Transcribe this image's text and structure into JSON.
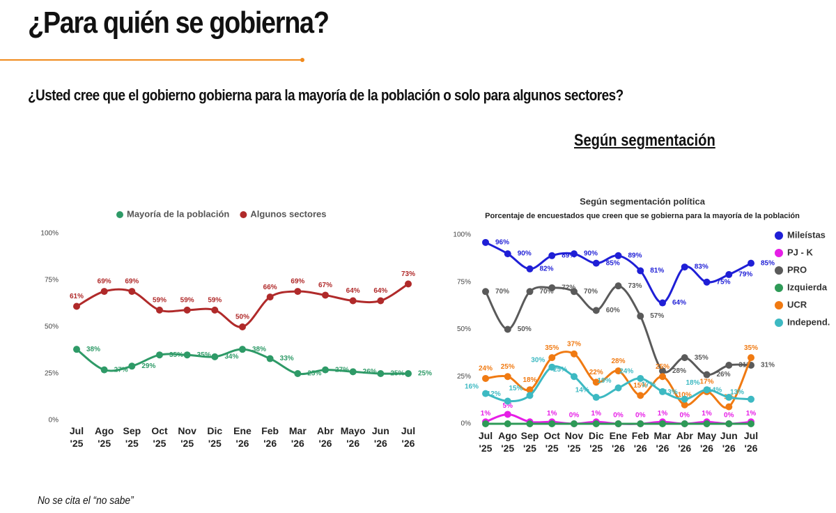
{
  "header": {
    "title": "¿Para quién se gobierna?",
    "subtitle": "¿Usted cree que el gobierno gobierna para la mayoría de la población o solo para algunos sectores?",
    "section_title": "Según segmentación"
  },
  "chart_data": [
    {
      "type": "line",
      "categories": [
        "Jul\n'25",
        "Ago\n'25",
        "Sep\n'25",
        "Oct\n'25",
        "Nov\n'25",
        "Dic\n'25",
        "Ene\n'26",
        "Feb\n'26",
        "Mar\n'26",
        "Abr\n'26",
        "Mayo\n'26",
        "Jun\n'26",
        "Jul\n'26"
      ],
      "series": [
        {
          "name": "Mayoría de la población",
          "color": "#2e9a67",
          "values": [
            38,
            27,
            29,
            35,
            35,
            34,
            38,
            33,
            25,
            27,
            26,
            25,
            25
          ],
          "value_labels": [
            "38%",
            "27%",
            "29%",
            "35%",
            "35%",
            "34%",
            "38%",
            "33%",
            "25%",
            "27%",
            "26%",
            "25%",
            "25%"
          ]
        },
        {
          "name": "Algunos sectores",
          "color": "#b02a2a",
          "values": [
            61,
            69,
            69,
            59,
            59,
            59,
            50,
            66,
            69,
            67,
            64,
            64,
            73
          ],
          "value_labels": [
            "61%",
            "69%",
            "69%",
            "59%",
            "59%",
            "59%",
            "50%",
            "66%",
            "69%",
            "67%",
            "64%",
            "64%",
            "73%"
          ]
        }
      ],
      "ylim": [
        0,
        100
      ],
      "yticks": [
        {
          "value": 0,
          "label": "0%"
        },
        {
          "value": 25,
          "label": "25%"
        },
        {
          "value": 50,
          "label": "50%"
        },
        {
          "value": 75,
          "label": "75%"
        },
        {
          "value": 100,
          "label": "100%"
        }
      ],
      "legend": "top"
    },
    {
      "type": "line",
      "title": "Según segmentación política",
      "subtitle": "Porcentaje de encuestados que creen que se gobierna para la mayoría de la población",
      "categories": [
        "Jul\n'25",
        "Ago\n'25",
        "Sep\n'25",
        "Oct\n'25",
        "Nov\n'25",
        "Dic\n'25",
        "Ene\n'26",
        "Feb\n'26",
        "Mar\n'26",
        "Abr\n'26",
        "May\n'26",
        "Jun\n'26",
        "Jul\n'26"
      ],
      "series": [
        {
          "name": "Mileístas",
          "color": "#1f1fd6",
          "values": [
            96,
            90,
            82,
            89,
            90,
            85,
            89,
            81,
            64,
            83,
            75,
            79,
            85
          ],
          "value_labels": [
            "96%",
            "90%",
            "82%",
            "89%",
            "90%",
            "85%",
            "89%",
            "81%",
            "64%",
            "83%",
            "75%",
            "79%",
            "85%"
          ]
        },
        {
          "name": "PJ - K",
          "color": "#e61ee6",
          "values": [
            1,
            5,
            1,
            1,
            0,
            1,
            0,
            0,
            1,
            0,
            1,
            0,
            1
          ],
          "value_labels": [
            "1%",
            "5%",
            null,
            "1%",
            "0%",
            "1%",
            "0%",
            "0%",
            "1%",
            "0%",
            "1%",
            "0%",
            "1%"
          ]
        },
        {
          "name": "PRO",
          "color": "#5a5a5a",
          "values": [
            70,
            50,
            70,
            72,
            70,
            60,
            73,
            57,
            28,
            35,
            26,
            31,
            31
          ],
          "value_labels": [
            "70%",
            "50%",
            "70%",
            "72%",
            "70%",
            "60%",
            "73%",
            "57%",
            "28%",
            "35%",
            "26%",
            "31%",
            "31%"
          ]
        },
        {
          "name": "Izquierda",
          "color": "#2e9a57",
          "values": [
            0,
            0,
            0,
            0,
            0,
            0,
            0,
            0,
            0,
            0,
            0,
            0,
            0
          ]
        },
        {
          "name": "UCR",
          "color": "#f07a12",
          "values": [
            24,
            25,
            18,
            35,
            37,
            22,
            28,
            15,
            25,
            10,
            17,
            9,
            35
          ],
          "value_labels": [
            "24%",
            "25%",
            "18%",
            "35%",
            "37%",
            "22%",
            "28%",
            "15%",
            "25%",
            "10%",
            "17%",
            "9%",
            "35%"
          ]
        },
        {
          "name": "Independ.",
          "color": "#3db9c2",
          "values": [
            16,
            12,
            15,
            30,
            25,
            14,
            19,
            24,
            17,
            13,
            18,
            14,
            13
          ],
          "value_labels": [
            "16%",
            "12%",
            "15%",
            "30%",
            "25%",
            "14%",
            "19%",
            "24%",
            "17%",
            "13%",
            "18%",
            "14%",
            "13%"
          ]
        }
      ],
      "ylim": [
        0,
        100
      ],
      "yticks": [
        {
          "value": 0,
          "label": "0%"
        },
        {
          "value": 25,
          "label": "25%"
        },
        {
          "value": 50,
          "label": "50%"
        },
        {
          "value": 75,
          "label": "75%"
        },
        {
          "value": 100,
          "label": "100%"
        }
      ],
      "legend": "right"
    }
  ],
  "footnote": "No se cita el “no sabe”"
}
